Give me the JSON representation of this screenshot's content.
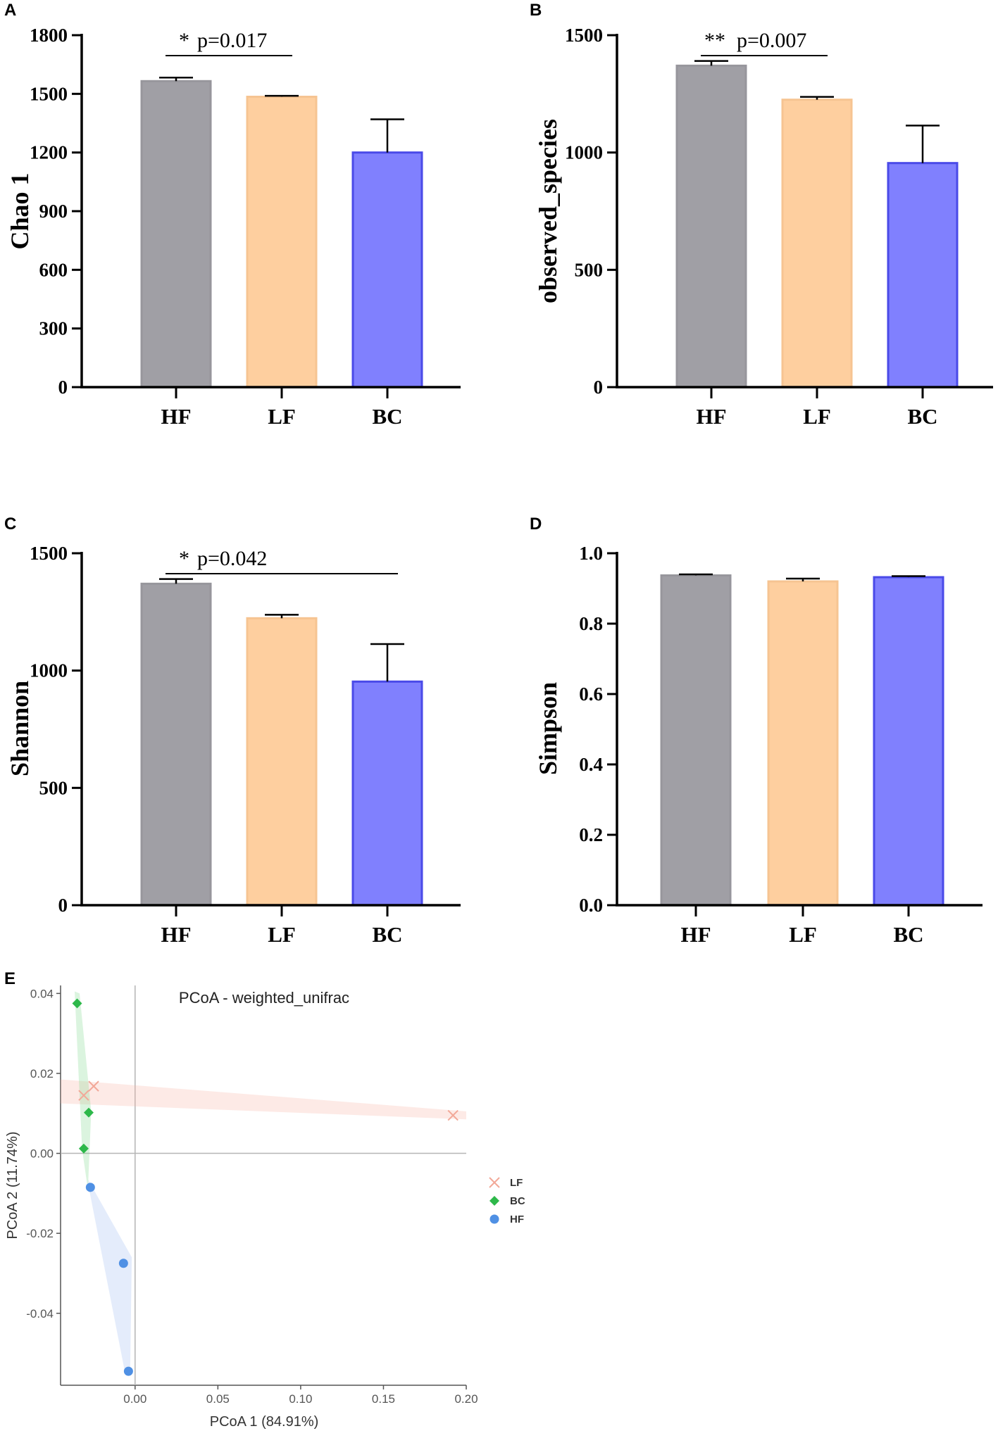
{
  "chart_data": [
    {
      "panel": "A",
      "type": "bar",
      "categories": [
        "HF",
        "LF",
        "BC"
      ],
      "values": [
        1565,
        1485,
        1200
      ],
      "errors": [
        18,
        5,
        170
      ],
      "colors": [
        "#a09fa5",
        "#fecf9f",
        "#8080fe"
      ],
      "edge_colors": [
        "#97969c",
        "#f6c492",
        "#4a4ae8"
      ],
      "ylabel": "Chao 1",
      "ylim": [
        0,
        1800
      ],
      "yticks": [
        0,
        300,
        600,
        900,
        1200,
        1500,
        1800
      ],
      "annotation": {
        "stars": "*",
        "text": "p=0.017",
        "from": 0,
        "to": 1
      }
    },
    {
      "panel": "B",
      "type": "bar",
      "categories": [
        "HF",
        "LF",
        "BC"
      ],
      "values": [
        1370,
        1225,
        955
      ],
      "errors": [
        20,
        12,
        160
      ],
      "colors": [
        "#a09fa5",
        "#fecf9f",
        "#8080fe"
      ],
      "edge_colors": [
        "#97969c",
        "#f6c492",
        "#4a4ae8"
      ],
      "ylabel": "observed_species",
      "ylim": [
        0,
        1500
      ],
      "yticks": [
        0,
        500,
        1000,
        1500
      ],
      "annotation": {
        "stars": "**",
        "text": "p=0.007",
        "from": 0,
        "to": 1
      }
    },
    {
      "panel": "C",
      "type": "bar",
      "categories": [
        "HF",
        "LF",
        "BC"
      ],
      "values": [
        1370,
        1223,
        953
      ],
      "errors": [
        20,
        15,
        160
      ],
      "colors": [
        "#a09fa5",
        "#fecf9f",
        "#8080fe"
      ],
      "edge_colors": [
        "#97969c",
        "#f6c492",
        "#4a4ae8"
      ],
      "ylabel": "Shannon",
      "ylim": [
        0,
        1500
      ],
      "yticks": [
        0,
        500,
        1000,
        1500
      ],
      "annotation": {
        "stars": "*",
        "text": "p=0.042",
        "from": 0,
        "to": 2
      }
    },
    {
      "panel": "D",
      "type": "bar",
      "categories": [
        "HF",
        "LF",
        "BC"
      ],
      "values": [
        0.937,
        0.92,
        0.932
      ],
      "errors": [
        0.003,
        0.008,
        0.003
      ],
      "colors": [
        "#a09fa5",
        "#fecf9f",
        "#8080fe"
      ],
      "edge_colors": [
        "#97969c",
        "#f6c492",
        "#4a4ae8"
      ],
      "ylabel": "Simpson",
      "ylim": [
        0,
        1.0
      ],
      "yticks": [
        "0.0",
        "0.2",
        "0.4",
        "0.6",
        "0.8",
        "1.0"
      ]
    },
    {
      "panel": "E",
      "type": "scatter",
      "title": "PCoA - weighted_unifrac",
      "xlabel": "PCoA 1 (84.91%)",
      "ylabel": "PCoA 2 (11.74%)",
      "xlim": [
        -0.045,
        0.2
      ],
      "ylim": [
        -0.058,
        0.042
      ],
      "xticks": [
        "0.00",
        "0.05",
        "0.10",
        "0.15",
        "0.20"
      ],
      "yticks": [
        "0.04",
        "0.02",
        "0.00",
        "-0.02",
        "-0.04"
      ],
      "series": [
        {
          "name": "LF",
          "marker": "x",
          "color": "#f2a898",
          "points": [
            [
              -0.031,
              0.0145
            ],
            [
              -0.025,
              0.0168
            ],
            [
              0.192,
              0.0095
            ]
          ]
        },
        {
          "name": "BC",
          "marker": "diamond",
          "color": "#2db84a",
          "points": [
            [
              -0.035,
              0.0375
            ],
            [
              -0.028,
              0.0102
            ],
            [
              -0.031,
              0.0012
            ]
          ]
        },
        {
          "name": "HF",
          "marker": "circle",
          "color": "#4f90e4",
          "points": [
            [
              -0.027,
              -0.0085
            ],
            [
              -0.007,
              -0.0275
            ],
            [
              -0.004,
              -0.0545
            ]
          ]
        }
      ]
    }
  ]
}
